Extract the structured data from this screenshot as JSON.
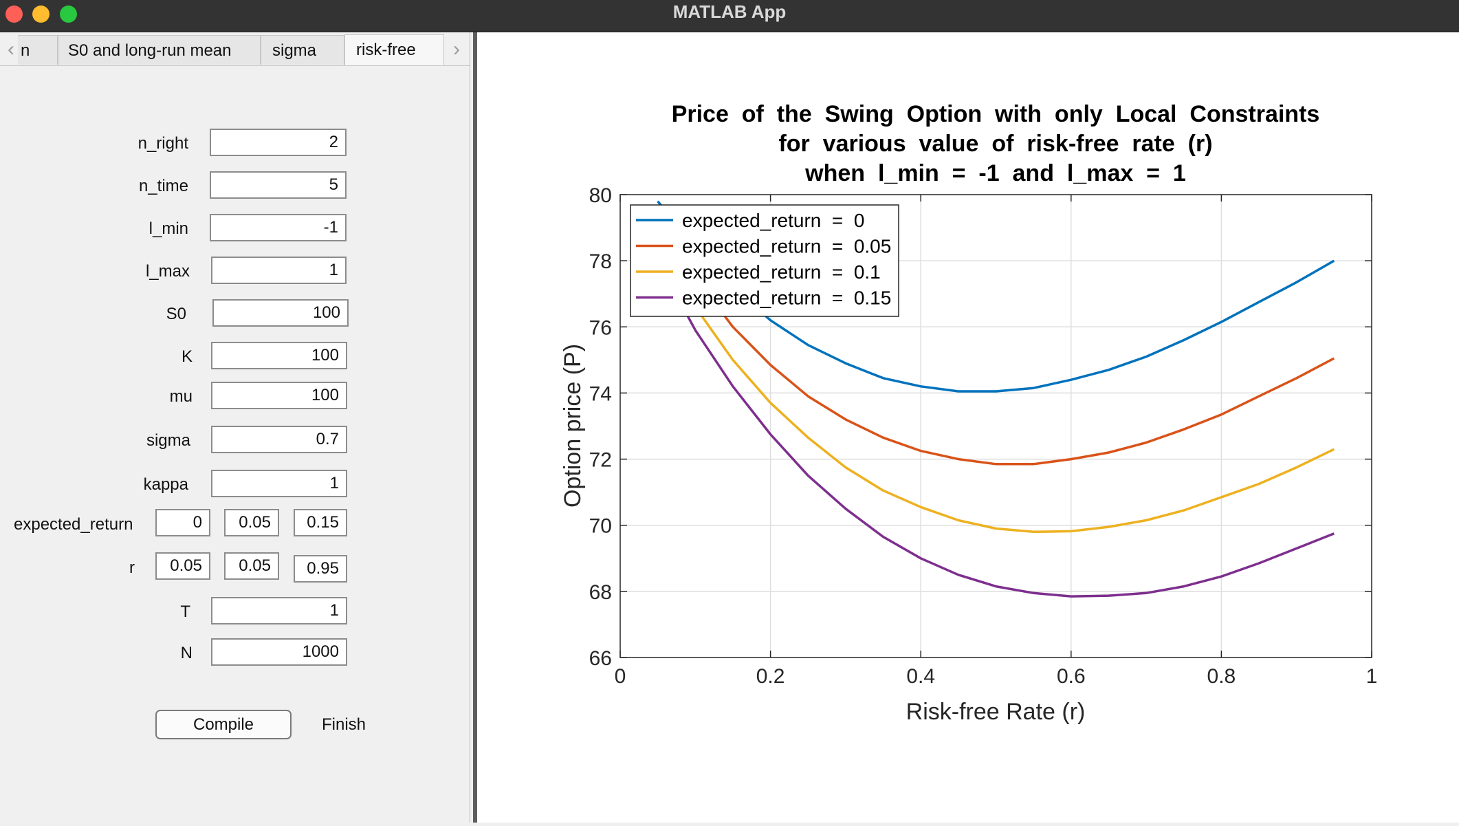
{
  "window": {
    "title": "MATLAB App"
  },
  "tabs": [
    {
      "label": "n"
    },
    {
      "label": "S0 and long-run mean"
    },
    {
      "label": "sigma"
    },
    {
      "label": "risk-free"
    }
  ],
  "params": {
    "n_right": {
      "label": "n_right",
      "value": "2"
    },
    "n_time": {
      "label": "n_time",
      "value": "5"
    },
    "l_min": {
      "label": "l_min",
      "value": "-1"
    },
    "l_max": {
      "label": "l_max",
      "value": "1"
    },
    "S0": {
      "label": "S0",
      "value": "100"
    },
    "K": {
      "label": "K",
      "value": "100"
    },
    "mu": {
      "label": "mu",
      "value": "100"
    },
    "sigma": {
      "label": "sigma",
      "value": "0.7"
    },
    "kappa": {
      "label": "kappa",
      "value": "1"
    },
    "expected_return": {
      "label": "expected_return",
      "values": [
        "0",
        "0.05",
        "0.15"
      ]
    },
    "r": {
      "label": "r",
      "values": [
        "0.05",
        "0.05",
        "0.95"
      ]
    },
    "T": {
      "label": "T",
      "value": "1"
    },
    "N": {
      "label": "N",
      "value": "1000"
    }
  },
  "buttons": {
    "compile": "Compile",
    "finish": "Finish"
  },
  "chart_data": {
    "type": "line",
    "title": [
      "Price  of  the  Swing  Option  with  only  Local  Constraints",
      "for  various  value  of  risk-free  rate  (r)",
      "when  l_min  =  -1  and  l_max  =  1"
    ],
    "xlabel": "Risk-free Rate (r)",
    "ylabel": "Option price (P)",
    "xlim": [
      0,
      1
    ],
    "ylim": [
      66,
      80
    ],
    "xticks": [
      0,
      0.2,
      0.4,
      0.6,
      0.8,
      1
    ],
    "xtick_labels": [
      "0",
      "0.2",
      "0.4",
      "0.6",
      "0.8",
      "1"
    ],
    "yticks": [
      66,
      68,
      70,
      72,
      74,
      76,
      78,
      80
    ],
    "ytick_labels": [
      "66",
      "68",
      "70",
      "72",
      "74",
      "76",
      "78",
      "80"
    ],
    "grid": true,
    "legend_position": "top-left",
    "x": [
      0.05,
      0.1,
      0.15,
      0.2,
      0.25,
      0.3,
      0.35,
      0.4,
      0.45,
      0.5,
      0.55,
      0.6,
      0.65,
      0.7,
      0.75,
      0.8,
      0.85,
      0.9,
      0.95
    ],
    "series": [
      {
        "name": "expected_return  =  0",
        "color": "#0072bd",
        "values": [
          79.8,
          78.4,
          77.2,
          76.2,
          75.45,
          74.9,
          74.45,
          74.2,
          74.05,
          74.05,
          74.15,
          74.4,
          74.7,
          75.1,
          75.6,
          76.15,
          76.75,
          77.35,
          78.0
        ]
      },
      {
        "name": "expected_return  =  0.05",
        "color": "#d95319",
        "values": [
          79.0,
          77.5,
          76.0,
          74.85,
          73.9,
          73.2,
          72.65,
          72.25,
          72.0,
          71.85,
          71.85,
          72.0,
          72.2,
          72.5,
          72.9,
          73.35,
          73.9,
          74.45,
          75.05
        ]
      },
      {
        "name": "expected_return  =  0.1",
        "color": "#edb120",
        "values": [
          78.5,
          76.6,
          75.0,
          73.7,
          72.65,
          71.75,
          71.05,
          70.55,
          70.15,
          69.9,
          69.8,
          69.82,
          69.95,
          70.15,
          70.45,
          70.85,
          71.25,
          71.75,
          72.3
        ]
      },
      {
        "name": "expected_return  =  0.15",
        "color": "#7e2f8e",
        "values": [
          78.0,
          75.9,
          74.2,
          72.75,
          71.5,
          70.5,
          69.65,
          69.0,
          68.5,
          68.15,
          67.95,
          67.85,
          67.87,
          67.95,
          68.15,
          68.45,
          68.85,
          69.3,
          69.75
        ]
      }
    ]
  }
}
